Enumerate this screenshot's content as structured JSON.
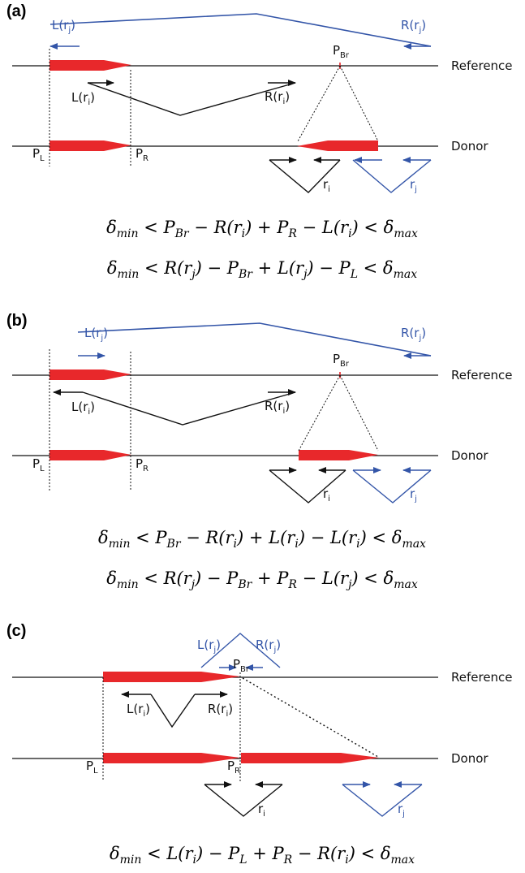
{
  "colors": {
    "black": "#111111",
    "blue": "#3355a8",
    "red": "#e8282b"
  },
  "panels": [
    {
      "label": "(a)",
      "reference_label": "Reference",
      "donor_label": "Donor",
      "pl": "P",
      "pl_sub": "L",
      "pr": "P",
      "pr_sub": "R",
      "pbr": "P",
      "pbr_sub": "Br",
      "lri": "L(r",
      "lri_sub": "i",
      "lri_close": ")",
      "rri": "R(r",
      "rri_sub": "i",
      "rri_close": ")",
      "lrj": "L(r",
      "lrj_sub": "j",
      "lrj_close": ")",
      "rrj": "R(r",
      "rrj_sub": "j",
      "rrj_close": ")",
      "ri": "r",
      "ri_sub": "i",
      "rj": "r",
      "rj_sub": "j",
      "equations": [
        "δ_min < P_Br − R(r_i) + P_R − L(r_i) < δ_max",
        "δ_min < R(r_j) − P_Br + L(r_j) − P_L < δ_max"
      ]
    },
    {
      "label": "(b)",
      "reference_label": "Reference",
      "donor_label": "Donor",
      "pl": "P",
      "pl_sub": "L",
      "pr": "P",
      "pr_sub": "R",
      "pbr": "P",
      "pbr_sub": "Br",
      "lri": "L(r",
      "lri_sub": "i",
      "lri_close": ")",
      "rri": "R(r",
      "rri_sub": "i",
      "rri_close": ")",
      "lrj": "L(r",
      "lrj_sub": "j",
      "lrj_close": ")",
      "rrj": "R(r",
      "rrj_sub": "j",
      "rrj_close": ")",
      "ri": "r",
      "ri_sub": "i",
      "rj": "r",
      "rj_sub": "j",
      "equations": [
        "δ_min < P_Br − R(r_i) + L(r_i) − L(r_i) < δ_max",
        "δ_min < R(r_j) − P_Br + P_R − L(r_j) < δ_max"
      ]
    },
    {
      "label": "(c)",
      "reference_label": "Reference",
      "donor_label": "Donor",
      "pl": "P",
      "pl_sub": "L",
      "pr": "P",
      "pr_sub": "R",
      "pbr": "P",
      "pbr_sub": "Br",
      "lri": "L(r",
      "lri_sub": "i",
      "lri_close": ")",
      "rri": "R(r",
      "rri_sub": "i",
      "rri_close": ")",
      "lrj": "L(r",
      "lrj_sub": "j",
      "lrj_close": ")",
      "rrj": "R(r",
      "rrj_sub": "j",
      "rrj_close": ")",
      "ri": "r",
      "ri_sub": "i",
      "rj": "r",
      "rj_sub": "j",
      "equations": [
        "δ_min < L(r_i) − P_L + P_R − R(r_i) < δ_max"
      ]
    }
  ]
}
